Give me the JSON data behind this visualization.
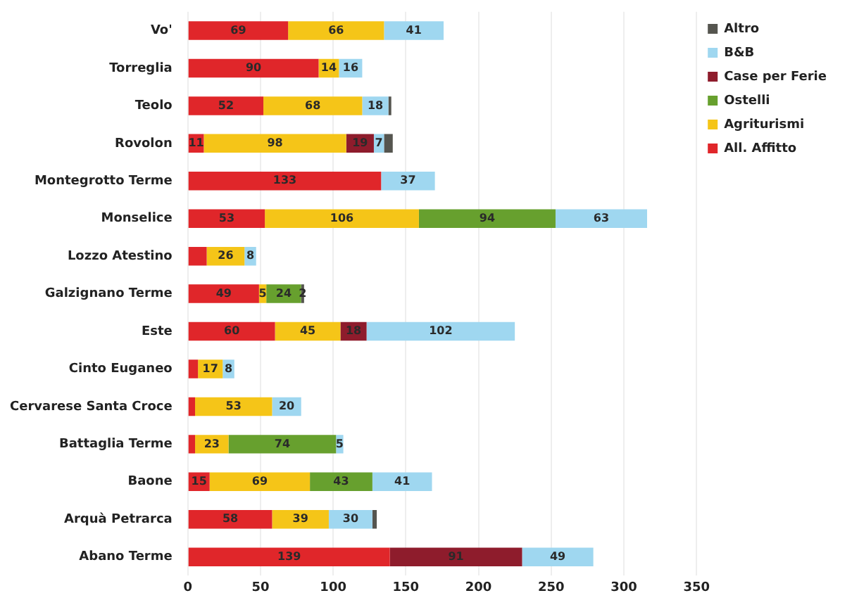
{
  "chart_data": {
    "type": "bar",
    "orientation": "horizontal",
    "stacked": true,
    "categories": [
      "Vo'",
      "Torreglia",
      "Teolo",
      "Rovolon",
      "Montegrotto Terme",
      "Monselice",
      "Lozzo Atestino",
      "Galzignano Terme",
      "Este",
      "Cinto Euganeo",
      "Cervarese Santa Croce",
      "Battaglia Terme",
      "Baone",
      "Arquà Petrarca",
      "Abano Terme"
    ],
    "series": [
      {
        "name": "All. Affitto",
        "color": "#e0262a",
        "values": [
          69,
          90,
          52,
          11,
          133,
          53,
          13,
          49,
          60,
          7,
          5,
          5,
          15,
          58,
          139
        ],
        "value_labels": [
          "69",
          "90",
          "52",
          "11",
          "133",
          "53",
          null,
          "49",
          "60",
          null,
          null,
          null,
          "15",
          "58",
          "139"
        ]
      },
      {
        "name": "Agriturismi",
        "color": "#f5c518",
        "values": [
          66,
          14,
          68,
          98,
          null,
          106,
          26,
          5,
          45,
          17,
          53,
          23,
          69,
          39,
          null
        ],
        "value_labels": [
          "66",
          "14",
          "68",
          "98",
          null,
          "106",
          "26",
          "5",
          "45",
          "17",
          "53",
          "23",
          "69",
          "39",
          null
        ]
      },
      {
        "name": "Ostelli",
        "color": "#67a02e",
        "values": [
          null,
          null,
          null,
          null,
          null,
          94,
          null,
          24,
          null,
          null,
          null,
          74,
          43,
          null,
          null
        ],
        "value_labels": [
          null,
          null,
          null,
          null,
          null,
          "94",
          null,
          "24",
          null,
          null,
          null,
          "74",
          "43",
          null,
          null
        ]
      },
      {
        "name": "Case per Ferie",
        "color": "#8e1c2c",
        "values": [
          null,
          null,
          null,
          19,
          null,
          null,
          null,
          null,
          18,
          null,
          null,
          null,
          null,
          null,
          91
        ],
        "value_labels": [
          null,
          null,
          null,
          "19",
          null,
          null,
          null,
          null,
          "18",
          null,
          null,
          null,
          null,
          null,
          "91"
        ]
      },
      {
        "name": "B&B",
        "color": "#9fd7f0",
        "values": [
          41,
          16,
          18,
          7,
          37,
          63,
          8,
          null,
          102,
          8,
          20,
          5,
          41,
          30,
          49
        ],
        "value_labels": [
          "41",
          "16",
          "18",
          "7",
          "37",
          "63",
          "8",
          null,
          "102",
          "8",
          "20",
          "5",
          "41",
          "30",
          "49"
        ]
      },
      {
        "name": "Altro",
        "color": "#55554f",
        "values": [
          null,
          null,
          2,
          6,
          null,
          null,
          null,
          2,
          null,
          null,
          null,
          null,
          null,
          3,
          null
        ],
        "value_labels": [
          null,
          null,
          null,
          null,
          null,
          null,
          null,
          "2",
          null,
          null,
          null,
          null,
          null,
          null,
          null
        ]
      }
    ],
    "xlim": [
      0,
      350
    ],
    "xticks": [
      0,
      50,
      100,
      150,
      200,
      250,
      300,
      350
    ],
    "grid": "x",
    "legend": "top right"
  }
}
